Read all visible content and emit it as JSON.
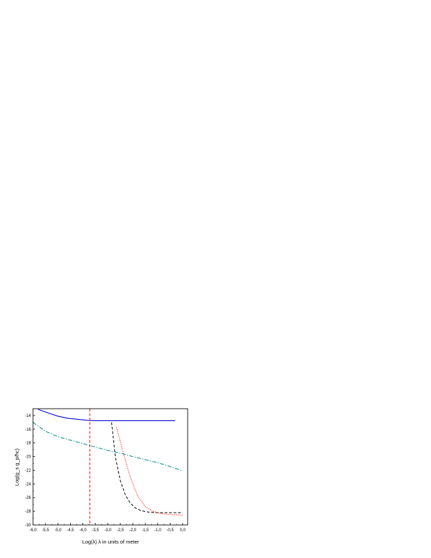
{
  "chart_data": {
    "type": "line",
    "title": "",
    "xlabel": "Log(λ)  λ in units of meter",
    "ylabel": "Log(g_s g_p/ħc)",
    "xlim": [
      -6.0,
      0.2
    ],
    "ylim": [
      -30,
      -13
    ],
    "x_ticks": [
      "-6,0",
      "-5,5",
      "-5,0",
      "-4,5",
      "-4,0",
      "-3,5",
      "-3,0",
      "-2,5",
      "-2,0",
      "-1,5",
      "-1,0",
      "-0,5",
      "0,0"
    ],
    "y_ticks": [
      "-14",
      "-16",
      "-18",
      "-20",
      "-22",
      "-24",
      "-26",
      "-28",
      "-30"
    ],
    "grid": false,
    "legend": "none",
    "series": [
      {
        "color": "#0000cc",
        "dash": "solid",
        "x": [
          -5.8,
          -5.4,
          -5.0,
          -4.6,
          -4.2,
          -3.8,
          -3.5,
          -3.2,
          -2.5,
          -2.0,
          -1.5,
          -1.0,
          -0.3
        ],
        "y": [
          -13.1,
          -13.6,
          -14.1,
          -14.4,
          -14.55,
          -14.7,
          -14.75,
          -14.75,
          -14.75,
          -14.75,
          -14.75,
          -14.75,
          -14.75
        ]
      },
      {
        "color": "#008b8b",
        "dash": "dashdot",
        "x": [
          -6.0,
          -5.5,
          -5.0,
          -4.5,
          -4.0,
          -3.5,
          -3.0,
          -2.5,
          -2.0,
          -1.5,
          -1.0,
          -0.5,
          0.0
        ],
        "y": [
          -15.0,
          -16.3,
          -17.1,
          -17.6,
          -18.1,
          -18.6,
          -19.1,
          -19.5,
          -20.0,
          -20.45,
          -20.9,
          -21.45,
          -22.1
        ]
      },
      {
        "color": "#000000",
        "dash": "dashed",
        "x": [
          -2.85,
          -2.7,
          -2.5,
          -2.3,
          -2.1,
          -1.9,
          -1.7,
          -1.5,
          -1.3,
          -1.0,
          -0.5,
          0.0
        ],
        "y": [
          -15.0,
          -20.0,
          -23.5,
          -25.6,
          -26.8,
          -27.5,
          -27.85,
          -28.05,
          -28.15,
          -28.2,
          -28.2,
          -28.2
        ]
      },
      {
        "color": "#ff0000",
        "dash": "dotted",
        "x": [
          -2.65,
          -2.4,
          -2.1,
          -1.8,
          -1.5,
          -1.2,
          -0.9,
          -0.6,
          -0.3,
          0.0
        ],
        "y": [
          -15.7,
          -19.2,
          -23.0,
          -25.8,
          -27.3,
          -28.0,
          -28.3,
          -28.45,
          -28.5,
          -28.6
        ]
      },
      {
        "color": "#ff0000",
        "dash": "dashed",
        "x": [
          -3.72,
          -3.72
        ],
        "y": [
          -13.0,
          -30.0
        ]
      }
    ]
  }
}
